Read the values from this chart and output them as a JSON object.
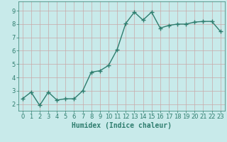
{
  "x": [
    0,
    1,
    2,
    3,
    4,
    5,
    6,
    7,
    8,
    9,
    10,
    11,
    12,
    13,
    14,
    15,
    16,
    17,
    18,
    19,
    20,
    21,
    22,
    23
  ],
  "y": [
    2.4,
    2.9,
    1.9,
    2.9,
    2.3,
    2.4,
    2.4,
    3.0,
    4.4,
    4.5,
    4.9,
    6.1,
    8.05,
    8.9,
    8.3,
    8.9,
    7.7,
    7.9,
    8.0,
    8.0,
    8.15,
    8.2,
    8.2,
    7.45
  ],
  "line_color": "#2e7d6e",
  "marker": "+",
  "marker_size": 4,
  "line_width": 1.0,
  "bg_color": "#c8eaea",
  "grid_color": "#c8a8a8",
  "xlabel": "Humidex (Indice chaleur)",
  "xlabel_fontsize": 7,
  "tick_fontsize": 6,
  "xlim": [
    -0.5,
    23.5
  ],
  "ylim": [
    1.5,
    9.7
  ],
  "yticks": [
    2,
    3,
    4,
    5,
    6,
    7,
    8,
    9
  ],
  "xticks": [
    0,
    1,
    2,
    3,
    4,
    5,
    6,
    7,
    8,
    9,
    10,
    11,
    12,
    13,
    14,
    15,
    16,
    17,
    18,
    19,
    20,
    21,
    22,
    23
  ]
}
